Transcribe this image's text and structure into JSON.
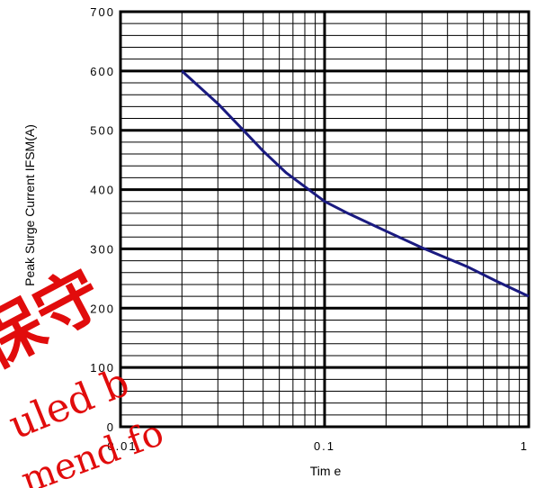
{
  "chart_data": {
    "type": "line",
    "title": "",
    "xlabel": "Tim e",
    "ylabel": "Peak Surge Current IFSM(A)",
    "x_scale": "log",
    "xlim": [
      0.01,
      1
    ],
    "ylim": [
      0,
      700
    ],
    "x_ticks": [
      0.01,
      0.1,
      1
    ],
    "x_tick_labels": [
      "0.01",
      "0.1",
      "1"
    ],
    "y_ticks": [
      0,
      100,
      200,
      300,
      400,
      500,
      600,
      700
    ],
    "y_tick_labels": [
      "0",
      "100",
      "200",
      "300",
      "400",
      "500",
      "600",
      "700"
    ],
    "grid": true,
    "line_color": "#1a1a80",
    "series": [
      {
        "x": [
          0.02,
          0.03,
          0.04,
          0.05,
          0.065,
          0.08,
          0.1,
          0.13,
          0.2,
          0.3,
          0.5,
          0.7,
          1.0
        ],
        "y": [
          600,
          545,
          500,
          465,
          428,
          405,
          380,
          360,
          330,
          302,
          270,
          245,
          220
        ]
      }
    ]
  },
  "watermark": {
    "text_lines": [
      "保守",
      "uled b",
      "mend fo"
    ],
    "color": "#e00000"
  }
}
